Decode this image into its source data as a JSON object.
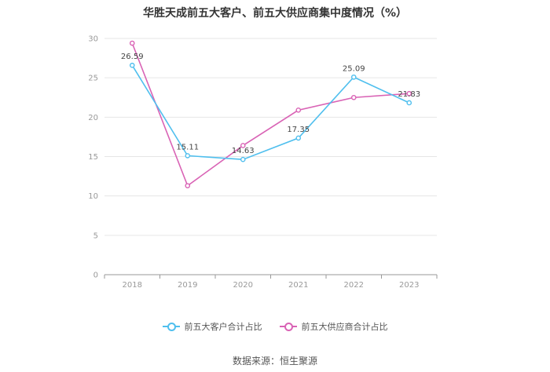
{
  "title": "华胜天成前五大客户、前五大供应商集中度情况（%）",
  "source": "数据来源：恒生聚源",
  "chart_data": {
    "type": "line",
    "title": "华胜天成前五大客户、前五大供应商集中度情况（%）",
    "categories": [
      "2018",
      "2019",
      "2020",
      "2021",
      "2022",
      "2023"
    ],
    "ylim": [
      0,
      30
    ],
    "yticks": [
      0,
      5,
      10,
      15,
      20,
      25,
      30
    ],
    "grid": true,
    "legend_position": "bottom",
    "series": [
      {
        "name": "前五大客户合计占比",
        "color": "#4fbfee",
        "values": [
          26.59,
          15.11,
          14.63,
          17.35,
          25.09,
          21.83
        ],
        "labels": [
          "26.59",
          "15.11",
          "14.63",
          "17.35",
          "25.09",
          "21.83"
        ]
      },
      {
        "name": "前五大供应商合计占比",
        "color": "#d963b5",
        "values": [
          29.4,
          11.3,
          16.4,
          20.9,
          22.5,
          23.0
        ],
        "labels": []
      }
    ]
  }
}
